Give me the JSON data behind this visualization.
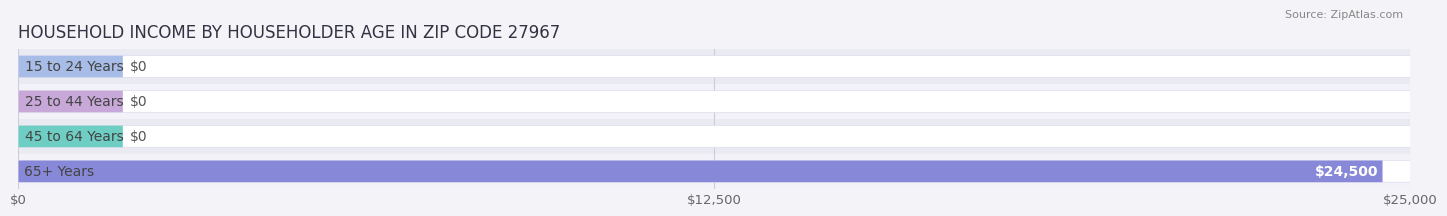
{
  "title": "HOUSEHOLD INCOME BY HOUSEHOLDER AGE IN ZIP CODE 27967",
  "source": "Source: ZipAtlas.com",
  "categories": [
    "15 to 24 Years",
    "25 to 44 Years",
    "45 to 64 Years",
    "65+ Years"
  ],
  "values": [
    0,
    0,
    0,
    24500
  ],
  "bar_colors": [
    "#a8bce8",
    "#c8a8d8",
    "#6ecec4",
    "#8888d8"
  ],
  "value_labels": [
    "$0",
    "$0",
    "$0",
    "$24,500"
  ],
  "xlim": [
    0,
    25000
  ],
  "xticks": [
    0,
    12500,
    25000
  ],
  "xticklabels": [
    "$0",
    "$12,500",
    "$25,000"
  ],
  "background_color": "#f4f4f8",
  "row_colors": [
    "#eaeaf2",
    "#f2f2f8"
  ],
  "title_fontsize": 12,
  "tick_fontsize": 9.5,
  "label_fontsize": 10,
  "value_label_fontsize": 10
}
